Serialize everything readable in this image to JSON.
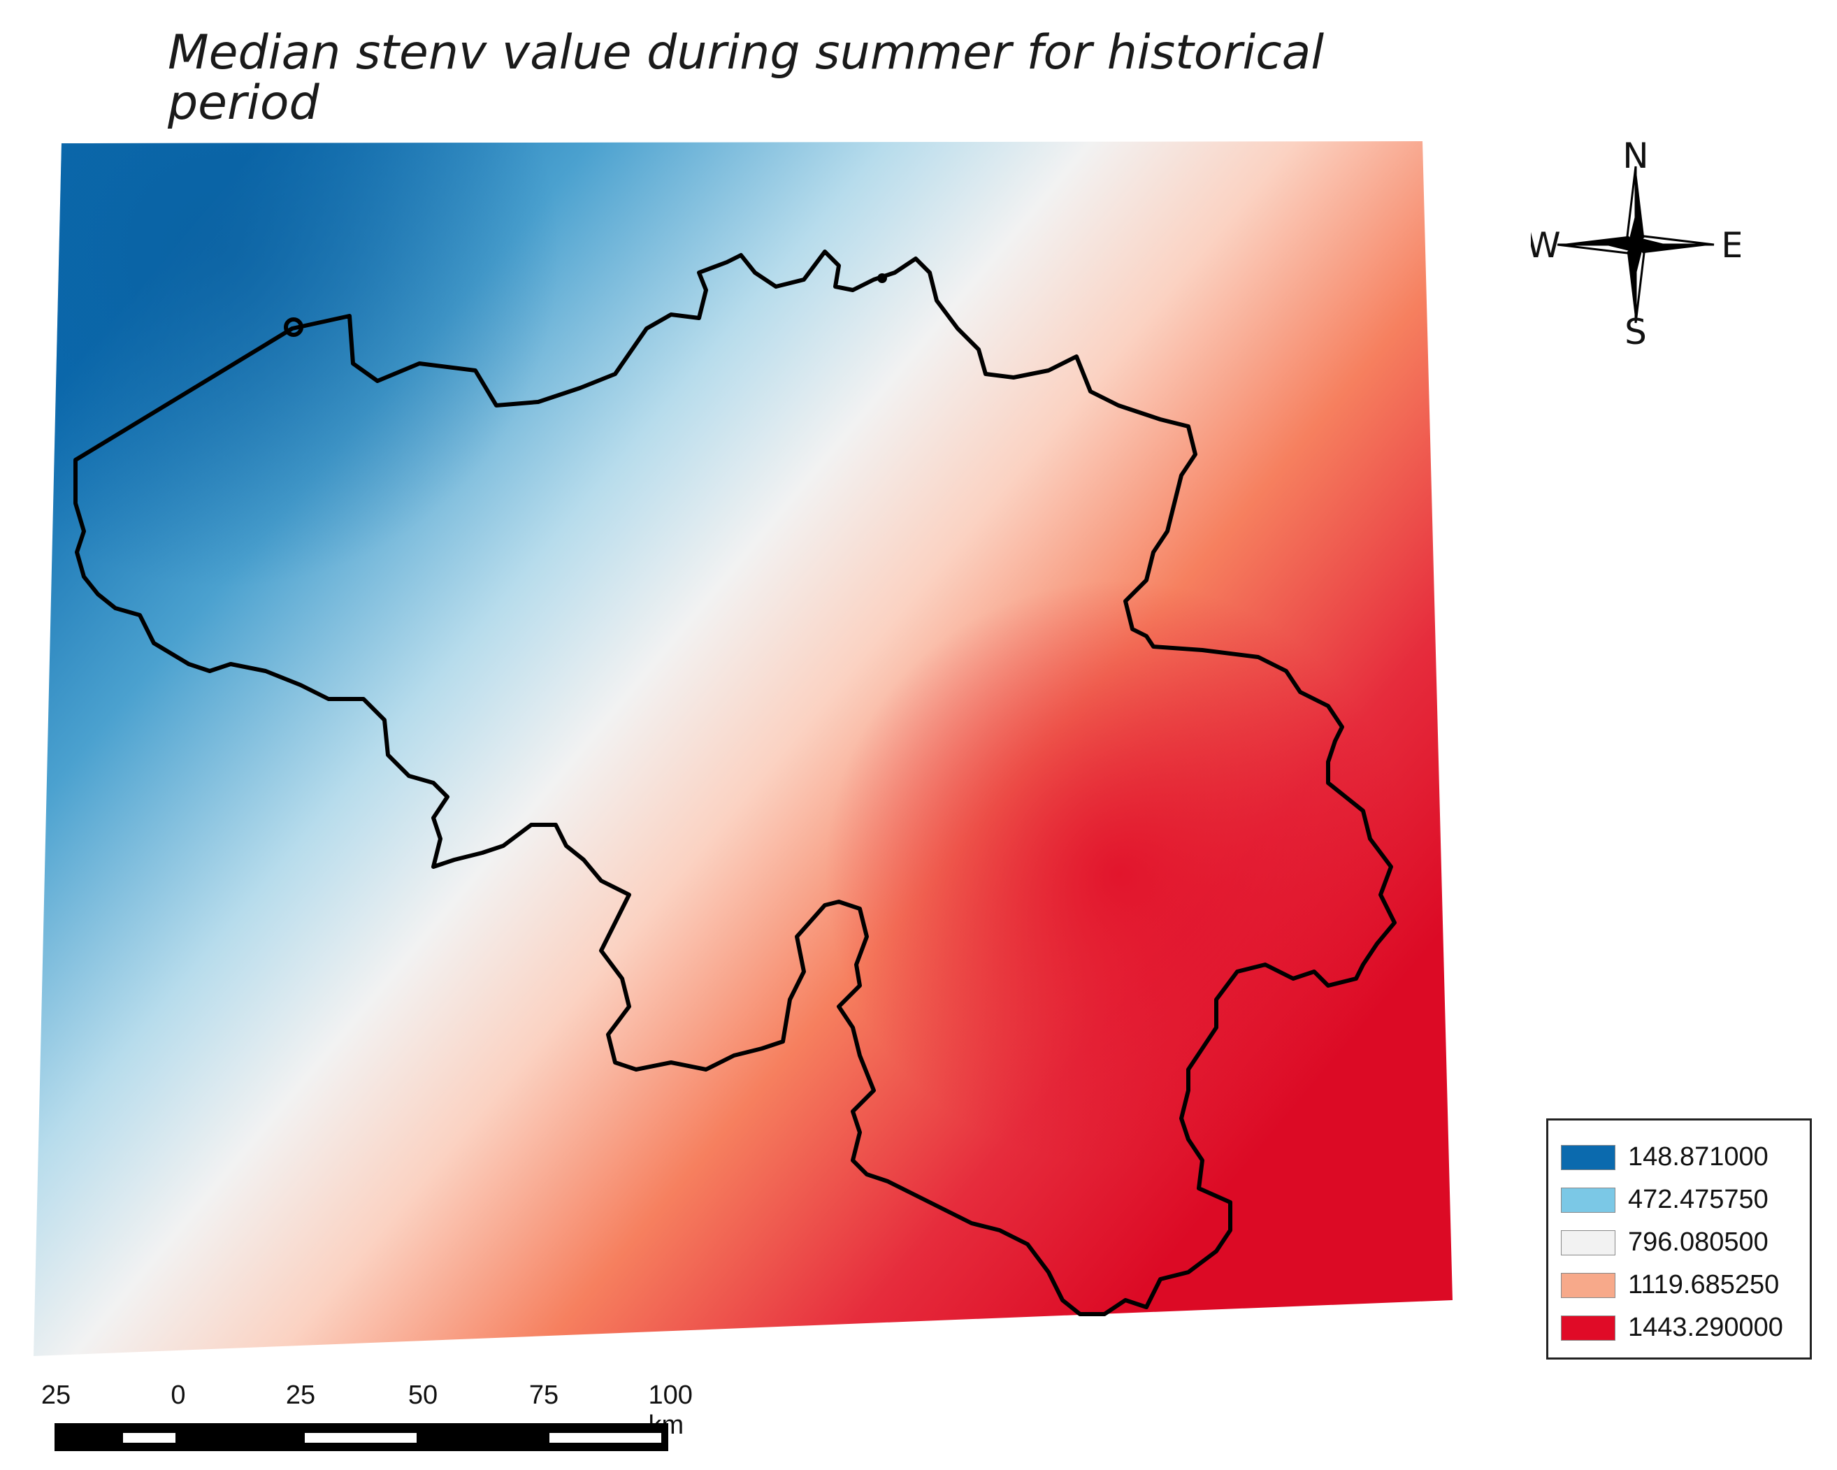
{
  "title": "Median stenv value during summer for historical period",
  "compass": {
    "n": "N",
    "s": "S",
    "e": "E",
    "w": "W"
  },
  "legend": [
    {
      "label": "148.871000",
      "color": "#0b6aae"
    },
    {
      "label": "472.475750",
      "color": "#7bc8e6"
    },
    {
      "label": "796.080500",
      "color": "#f2f2f2"
    },
    {
      "label": "1119.685250",
      "color": "#f7a98a"
    },
    {
      "label": "1443.290000",
      "color": "#e00b27"
    }
  ],
  "scale": {
    "ticks": [
      "25",
      "0",
      "25",
      "50",
      "75",
      "100 km"
    ]
  }
}
